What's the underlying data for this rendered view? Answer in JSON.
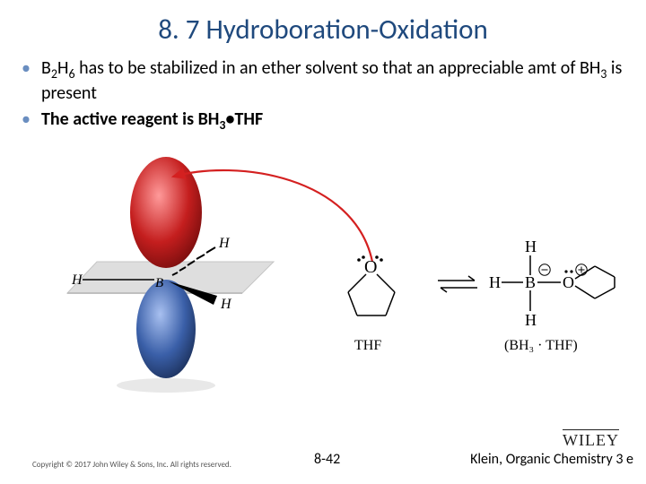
{
  "title": "8. 7 Hydroboration-Oxidation",
  "title_color": "#1f497d",
  "bullet_color": "#6a8ec0",
  "bullets": [
    {
      "html": "B<sub class='sub'>2</sub>H<sub class='sub'>6</sub> has to be stabilized in an ether solvent so that an appreciable amt of BH<sub class='sub'>3</sub> is present"
    },
    {
      "html": "<span class='bold'>The active reagent is  BH<sub class='sub'>3</sub>&bull;THF</span>"
    }
  ],
  "thf_label": "THF",
  "bh3thf_label": "(BH₃ · THF)",
  "copyright": "Copyright © 2017 John Wiley & Sons, Inc. All rights reserved.",
  "page_number": "8-42",
  "wiley": "WILEY",
  "book_ref": "Klein, Organic Chemistry 3 e",
  "colors": {
    "red_lobe": "#c41e1e",
    "blue_lobe": "#3a5fa8",
    "arrow_red": "#d42020",
    "plane_gray": "#d8d8d8",
    "plane_edge": "#bfbfbf",
    "text_black": "#000000",
    "charge_circle": "#000000"
  },
  "diagram": {
    "type": "chemistry-orbital-and-structures",
    "orbital": {
      "top_lobe_color": "#c41e1e",
      "bottom_lobe_color": "#3a5fa8",
      "plane_fill": "#d8d8d8",
      "atoms": [
        "B",
        "H",
        "H",
        "H"
      ]
    },
    "thf_structure": "O with lone pairs, pentagon ring",
    "equilibrium": "⇌",
    "bh3thf_structure": "H3B(-)-O(+) in ring"
  }
}
